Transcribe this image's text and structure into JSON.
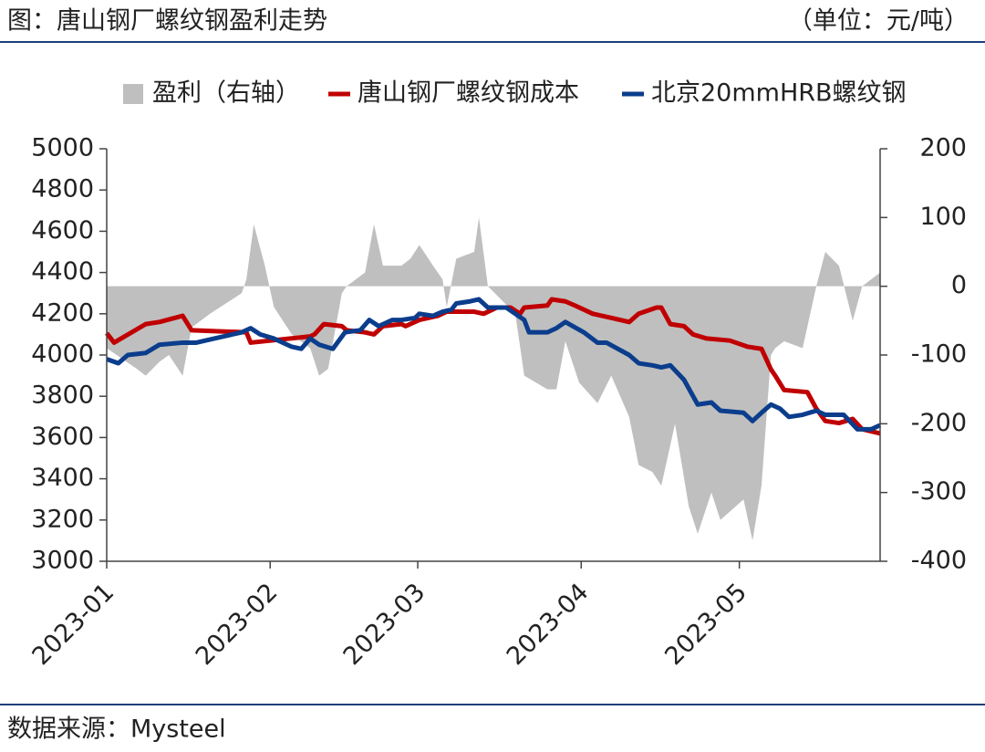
{
  "chart_data": {
    "type": "line",
    "title": "图：唐山钢厂螺纹钢盈利走势",
    "unit_note": "（单位：元/吨）",
    "source": "数据来源：Mysteel",
    "xlim": [
      0,
      146.7
    ],
    "xticks": [
      {
        "value": 0,
        "label": "2023-01"
      },
      {
        "value": 31,
        "label": "2023-02"
      },
      {
        "value": 59,
        "label": "2023-03"
      },
      {
        "value": 90,
        "label": "2023-04"
      },
      {
        "value": 120,
        "label": "2023-05"
      }
    ],
    "ylim": [
      3000,
      5000
    ],
    "yticks": [
      3000,
      3200,
      3400,
      3600,
      3800,
      4000,
      4200,
      4400,
      4600,
      4800,
      5000
    ],
    "y2lim": [
      -400,
      200
    ],
    "y2ticks": [
      -400,
      -300,
      -200,
      -100,
      0,
      100,
      200
    ],
    "series": [
      {
        "name": "盈利（右轴）",
        "color": "#bfbfbf",
        "mark": "area",
        "axis": "y2",
        "x": [
          0,
          5.7,
          7.4,
          10,
          11.8,
          14.4,
          16.1,
          19.6,
          25.6,
          26.5,
          27.9,
          30.0,
          31.7,
          35.1,
          38.6,
          40.3,
          42.0,
          44.6,
          45.5,
          49.0,
          50.7,
          52.4,
          55.9,
          57.6,
          59.3,
          61.9,
          63.7,
          64.5,
          66.3,
          69.7,
          70.6,
          72.3,
          74.9,
          77.5,
          79.2,
          83.6,
          85.3,
          87.0,
          89.6,
          93.1,
          95.7,
          99.1,
          100.9,
          103.5,
          105.2,
          107.8,
          110.4,
          112.1,
          114.7,
          116.4,
          120.8,
          122.5,
          124.2,
          126.0,
          126.8,
          128.5,
          132.0,
          134.6,
          136.3,
          138.9,
          141.5,
          143.3,
          146.7
        ],
        "values": [
          -90,
          -120,
          -130,
          -110,
          -100,
          -130,
          -60,
          -40,
          -10,
          10,
          90,
          30,
          -30,
          -70,
          -90,
          -130,
          -120,
          -10,
          0,
          20,
          90,
          30,
          30,
          40,
          60,
          30,
          10,
          -30,
          40,
          50,
          100,
          0,
          -20,
          -40,
          -130,
          -150,
          -150,
          -80,
          -140,
          -170,
          -130,
          -190,
          -260,
          -270,
          -290,
          -200,
          -320,
          -360,
          -300,
          -340,
          -310,
          -370,
          -290,
          -100,
          -90,
          -80,
          -90,
          0,
          50,
          30,
          -50,
          0,
          20
        ]
      },
      {
        "name": "唐山钢厂螺纹钢成本",
        "color": "#c00000",
        "mark": "line",
        "x": [
          0,
          1.4,
          7.4,
          10,
          14.4,
          16.1,
          26.5,
          27.3,
          38.6,
          39.4,
          41.2,
          44.6,
          45.5,
          49,
          50.7,
          52.4,
          55.9,
          56.7,
          59.3,
          62.8,
          64.5,
          69.7,
          71.5,
          74.0,
          76.6,
          78.4,
          79.2,
          83.6,
          84.4,
          87.0,
          88.8,
          92.2,
          95.7,
          99.1,
          100.9,
          104.3,
          105.2,
          106.9,
          109.5,
          111.2,
          113.8,
          118.2,
          121.6,
          124.2,
          126.0,
          126.8,
          128.5,
          132.9,
          134.6,
          136.3,
          138.9,
          141.5,
          143.3,
          146.7
        ],
        "values": [
          4106,
          4060,
          4150,
          4160,
          4190,
          4120,
          4110,
          4060,
          4090,
          4100,
          4150,
          4140,
          4120,
          4110,
          4100,
          4140,
          4150,
          4140,
          4170,
          4190,
          4210,
          4210,
          4200,
          4230,
          4230,
          4200,
          4230,
          4240,
          4270,
          4260,
          4240,
          4200,
          4180,
          4160,
          4200,
          4230,
          4230,
          4150,
          4140,
          4100,
          4080,
          4070,
          4040,
          4030,
          3930,
          3900,
          3830,
          3820,
          3740,
          3680,
          3670,
          3690,
          3640,
          3620
        ]
      },
      {
        "name": "北京20mmHRB螺纹钢",
        "color": "#0b3d8c",
        "mark": "line",
        "x": [
          0,
          2.2,
          4.0,
          7.4,
          10,
          14.4,
          17.0,
          20.4,
          25.6,
          27.3,
          29.1,
          31.7,
          35.1,
          36.9,
          38.6,
          40.3,
          42.9,
          45.2,
          48.1,
          49.8,
          51.6,
          54.2,
          55.9,
          58.5,
          59.3,
          61.9,
          63.7,
          65.4,
          66.3,
          68.9,
          70.6,
          72.3,
          75.8,
          79.2,
          80.1,
          83.6,
          85.3,
          87.0,
          90.5,
          93.1,
          94.8,
          99.1,
          100.9,
          103.5,
          105.2,
          106.9,
          109.5,
          112.1,
          114.7,
          116.4,
          120.8,
          122.5,
          124.2,
          126.0,
          127.7,
          129.4,
          132.0,
          134.6,
          136.3,
          139.8,
          142.4,
          145.0,
          146.7
        ],
        "values": [
          3980,
          3960,
          4000,
          4010,
          4050,
          4060,
          4060,
          4080,
          4110,
          4130,
          4100,
          4080,
          4040,
          4030,
          4080,
          4050,
          4030,
          4110,
          4120,
          4170,
          4140,
          4170,
          4170,
          4180,
          4200,
          4190,
          4210,
          4220,
          4250,
          4260,
          4270,
          4230,
          4230,
          4170,
          4110,
          4110,
          4130,
          4160,
          4110,
          4060,
          4060,
          4000,
          3960,
          3950,
          3940,
          3950,
          3880,
          3760,
          3770,
          3730,
          3720,
          3680,
          3720,
          3760,
          3740,
          3700,
          3710,
          3730,
          3710,
          3710,
          3640,
          3640,
          3660
        ]
      }
    ]
  }
}
